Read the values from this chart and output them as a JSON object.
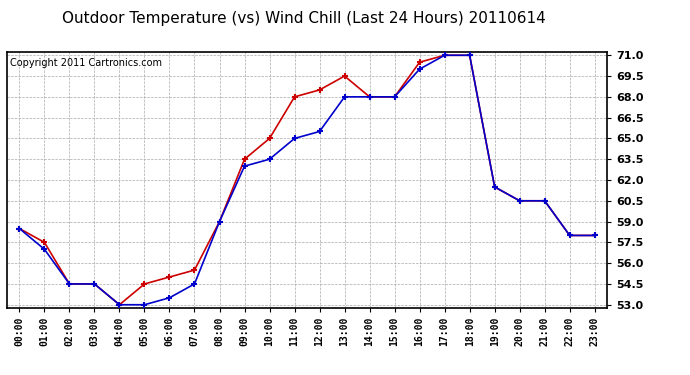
{
  "title": "Outdoor Temperature (vs) Wind Chill (Last 24 Hours) 20110614",
  "copyright": "Copyright 2011 Cartronics.com",
  "x_labels": [
    "00:00",
    "01:00",
    "02:00",
    "03:00",
    "04:00",
    "05:00",
    "06:00",
    "07:00",
    "08:00",
    "09:00",
    "10:00",
    "11:00",
    "12:00",
    "13:00",
    "14:00",
    "15:00",
    "16:00",
    "17:00",
    "18:00",
    "19:00",
    "20:00",
    "21:00",
    "22:00",
    "23:00"
  ],
  "outdoor_temp": [
    58.5,
    57.5,
    54.5,
    54.5,
    53.0,
    54.5,
    55.0,
    55.5,
    59.0,
    63.5,
    65.0,
    68.0,
    68.5,
    69.5,
    68.0,
    68.0,
    70.5,
    71.0,
    71.0,
    61.5,
    60.5,
    60.5,
    58.0,
    58.0
  ],
  "wind_chill": [
    58.5,
    57.0,
    54.5,
    54.5,
    53.0,
    53.0,
    53.5,
    54.5,
    59.0,
    63.0,
    63.5,
    65.0,
    65.5,
    68.0,
    68.0,
    68.0,
    70.0,
    71.0,
    71.0,
    61.5,
    60.5,
    60.5,
    58.0,
    58.0
  ],
  "temp_color": "#cc0000",
  "wind_chill_color": "#0000cc",
  "ylim_min": 53.0,
  "ylim_max": 71.0,
  "ytick_step": 1.5,
  "background_color": "#ffffff",
  "plot_bg_color": "#ffffff",
  "grid_color": "#aaaaaa",
  "title_fontsize": 11,
  "copyright_fontsize": 7,
  "tick_label_fontsize": 8,
  "x_tick_fontsize": 7
}
